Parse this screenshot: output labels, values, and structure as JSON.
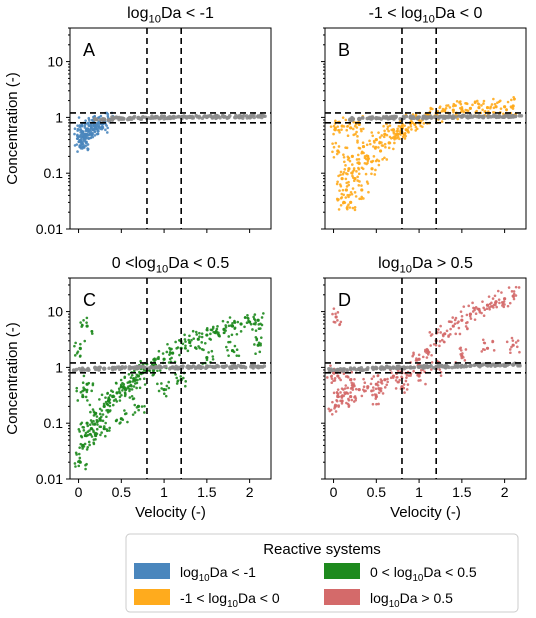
{
  "chart_data": [
    {
      "panel": "A",
      "type": "scatter",
      "title_base": "log",
      "title_sub": "10",
      "title_rest": "Da < -1",
      "xlabel": "",
      "ylabel": "Concentration (-)",
      "xlim": [
        -0.1,
        2.25
      ],
      "ylim": [
        0.01,
        40
      ],
      "yscale": "log",
      "xticks": [
        0,
        0.5,
        1,
        1.5,
        2
      ],
      "xtick_labels": [],
      "yticks": [
        0.01,
        0.1,
        1,
        10
      ],
      "ytick_labels": [
        "0.01",
        "0.1",
        "1",
        "10"
      ],
      "vlines": [
        0.8,
        1.2
      ],
      "hlines": [
        0.8,
        1.2
      ],
      "series": [
        {
          "color": "#4a86bd",
          "points": [
            [
              0.02,
              0.38
            ],
            [
              0.04,
              0.34
            ],
            [
              0.06,
              0.45
            ],
            [
              0.05,
              0.55
            ],
            [
              0.08,
              0.5
            ],
            [
              0.1,
              0.62
            ],
            [
              0.12,
              0.58
            ],
            [
              0.15,
              0.66
            ],
            [
              0.18,
              0.72
            ],
            [
              0.2,
              0.65
            ],
            [
              0.22,
              0.78
            ],
            [
              0.25,
              0.8
            ],
            [
              0.28,
              0.76
            ],
            [
              0.3,
              0.85
            ],
            [
              0.35,
              0.88
            ],
            [
              0.03,
              0.7
            ],
            [
              0.07,
              0.42
            ],
            [
              0.09,
              0.36
            ],
            [
              0.14,
              0.5
            ],
            [
              0.17,
              0.6
            ]
          ]
        },
        {
          "color": "#8c8c8c",
          "points": [
            [
              0.3,
              0.92
            ],
            [
              0.5,
              0.96
            ],
            [
              0.7,
              0.98
            ],
            [
              0.9,
              1.0
            ],
            [
              1.1,
              1.0
            ],
            [
              1.3,
              1.02
            ],
            [
              1.5,
              1.02
            ],
            [
              1.7,
              1.03
            ],
            [
              1.9,
              1.03
            ],
            [
              2.1,
              1.04
            ]
          ]
        }
      ]
    },
    {
      "panel": "B",
      "type": "scatter",
      "title_base": "-1 < log",
      "title_sub": "10",
      "title_rest": "Da < 0",
      "xlabel": "",
      "ylabel": "",
      "xlim": [
        -0.1,
        2.25
      ],
      "ylim": [
        0.01,
        40
      ],
      "yscale": "log",
      "xticks": [
        0,
        0.5,
        1,
        1.5,
        2
      ],
      "xtick_labels": [],
      "yticks": [
        0.01,
        0.1,
        1,
        10
      ],
      "ytick_labels": [],
      "vlines": [
        0.8,
        1.2
      ],
      "hlines": [
        0.8,
        1.2
      ],
      "series": [
        {
          "color": "#ffab1d",
          "points": [
            [
              0.02,
              0.6
            ],
            [
              0.05,
              0.25
            ],
            [
              0.1,
              0.08
            ],
            [
              0.12,
              0.03
            ],
            [
              0.15,
              0.05
            ],
            [
              0.18,
              0.12
            ],
            [
              0.2,
              0.03
            ],
            [
              0.22,
              0.2
            ],
            [
              0.25,
              0.08
            ],
            [
              0.3,
              0.15
            ],
            [
              0.33,
              0.05
            ],
            [
              0.35,
              0.3
            ],
            [
              0.4,
              0.2
            ],
            [
              0.45,
              0.12
            ],
            [
              0.5,
              0.4
            ],
            [
              0.55,
              0.25
            ],
            [
              0.6,
              0.5
            ],
            [
              0.65,
              0.35
            ],
            [
              0.7,
              0.6
            ],
            [
              0.75,
              0.5
            ],
            [
              0.8,
              0.7
            ],
            [
              0.85,
              0.6
            ],
            [
              0.9,
              0.8
            ],
            [
              0.95,
              0.75
            ],
            [
              1.0,
              0.9
            ],
            [
              1.1,
              1.1
            ],
            [
              1.2,
              1.2
            ],
            [
              1.3,
              1.3
            ],
            [
              1.4,
              1.35
            ],
            [
              1.5,
              1.4
            ],
            [
              1.6,
              1.45
            ],
            [
              1.7,
              1.5
            ],
            [
              1.8,
              1.5
            ],
            [
              1.9,
              1.55
            ],
            [
              2.0,
              1.55
            ],
            [
              2.1,
              1.6
            ],
            [
              0.1,
              0.7
            ],
            [
              0.2,
              0.65
            ],
            [
              0.3,
              0.75
            ]
          ]
        },
        {
          "color": "#8c8c8c",
          "points": [
            [
              0.3,
              0.94
            ],
            [
              0.5,
              0.97
            ],
            [
              0.7,
              0.99
            ],
            [
              0.9,
              1.0
            ],
            [
              1.1,
              1.0
            ],
            [
              1.3,
              1.02
            ],
            [
              1.5,
              1.03
            ],
            [
              1.7,
              1.04
            ],
            [
              1.9,
              1.04
            ],
            [
              2.1,
              1.05
            ]
          ]
        }
      ]
    },
    {
      "panel": "C",
      "type": "scatter",
      "title_base": "0 <log",
      "title_sub": "10",
      "title_rest": "Da < 0.5",
      "xlabel": "Velocity (-)",
      "ylabel": "Concentration (-)",
      "xlim": [
        -0.1,
        2.25
      ],
      "ylim": [
        0.01,
        40
      ],
      "yscale": "log",
      "xticks": [
        0,
        0.5,
        1,
        1.5,
        2
      ],
      "xtick_labels": [
        "0",
        "0.5",
        "1",
        "1.5",
        "2"
      ],
      "yticks": [
        0.01,
        0.1,
        1,
        10
      ],
      "ytick_labels": [
        "0.01",
        "0.1",
        "1",
        "10"
      ],
      "vlines": [
        0.8,
        1.2
      ],
      "hlines": [
        0.8,
        1.2
      ],
      "series": [
        {
          "color": "#1e8a1e",
          "points": [
            [
              0.02,
              0.02
            ],
            [
              0.05,
              0.04
            ],
            [
              0.08,
              0.06
            ],
            [
              0.1,
              0.1
            ],
            [
              0.15,
              0.08
            ],
            [
              0.2,
              0.15
            ],
            [
              0.25,
              0.12
            ],
            [
              0.3,
              0.2
            ],
            [
              0.35,
              0.25
            ],
            [
              0.4,
              0.3
            ],
            [
              0.45,
              0.35
            ],
            [
              0.5,
              0.45
            ],
            [
              0.55,
              0.4
            ],
            [
              0.6,
              0.55
            ],
            [
              0.65,
              0.6
            ],
            [
              0.7,
              0.7
            ],
            [
              0.75,
              0.8
            ],
            [
              0.8,
              0.9
            ],
            [
              0.85,
              1.0
            ],
            [
              0.9,
              1.1
            ],
            [
              1.0,
              1.4
            ],
            [
              1.1,
              1.8
            ],
            [
              1.2,
              2.2
            ],
            [
              1.3,
              2.8
            ],
            [
              1.4,
              3.2
            ],
            [
              1.5,
              3.8
            ],
            [
              1.6,
              4.2
            ],
            [
              1.7,
              4.8
            ],
            [
              1.8,
              5.5
            ],
            [
              1.9,
              6.0
            ],
            [
              2.0,
              6.5
            ],
            [
              2.1,
              7.0
            ],
            [
              0.05,
              0.3
            ],
            [
              0.1,
              0.5
            ],
            [
              0.2,
              0.06
            ],
            [
              0.3,
              0.08
            ],
            [
              0.5,
              0.12
            ],
            [
              0.7,
              0.2
            ],
            [
              1.0,
              0.4
            ],
            [
              1.2,
              0.6
            ],
            [
              1.5,
              1.5
            ],
            [
              1.8,
              2.0
            ],
            [
              2.1,
              2.5
            ],
            [
              0.1,
              5.5
            ],
            [
              0.02,
              2.2
            ]
          ]
        },
        {
          "color": "#8c8c8c",
          "points": [
            [
              0.05,
              0.92
            ],
            [
              0.3,
              0.95
            ],
            [
              0.5,
              0.97
            ],
            [
              0.7,
              0.99
            ],
            [
              0.9,
              1.0
            ],
            [
              1.1,
              1.0
            ],
            [
              1.3,
              1.01
            ],
            [
              1.5,
              1.02
            ],
            [
              1.7,
              1.02
            ],
            [
              1.9,
              1.03
            ],
            [
              2.1,
              1.03
            ]
          ]
        }
      ]
    },
    {
      "panel": "D",
      "type": "scatter",
      "title_base": "log",
      "title_sub": "10",
      "title_rest": "Da > 0.5",
      "xlabel": "Velocity (-)",
      "ylabel": "",
      "xlim": [
        -0.1,
        2.25
      ],
      "ylim": [
        0.01,
        40
      ],
      "yscale": "log",
      "xticks": [
        0,
        0.5,
        1,
        1.5,
        2
      ],
      "xtick_labels": [
        "0",
        "0.5",
        "1",
        "1.5",
        "2"
      ],
      "yticks": [
        0.01,
        0.1,
        1,
        10
      ],
      "ytick_labels": [],
      "vlines": [
        0.8,
        1.2
      ],
      "hlines": [
        0.8,
        1.2
      ],
      "series": [
        {
          "color": "#d46a6a",
          "points": [
            [
              0.02,
              0.2
            ],
            [
              0.05,
              0.3
            ],
            [
              0.1,
              0.25
            ],
            [
              0.15,
              0.35
            ],
            [
              0.2,
              0.3
            ],
            [
              0.3,
              0.4
            ],
            [
              0.4,
              0.45
            ],
            [
              0.5,
              0.5
            ],
            [
              0.6,
              0.6
            ],
            [
              0.7,
              0.7
            ],
            [
              0.8,
              0.8
            ],
            [
              0.9,
              1.0
            ],
            [
              1.0,
              1.4
            ],
            [
              1.1,
              2.0
            ],
            [
              1.2,
              3.0
            ],
            [
              1.3,
              4.0
            ],
            [
              1.4,
              5.5
            ],
            [
              1.5,
              7.0
            ],
            [
              1.6,
              9.0
            ],
            [
              1.7,
              11.0
            ],
            [
              1.8,
              13.0
            ],
            [
              1.9,
              15.0
            ],
            [
              2.0,
              17.0
            ],
            [
              2.1,
              19.0
            ],
            [
              0.05,
              0.7
            ],
            [
              0.2,
              0.6
            ],
            [
              0.5,
              0.3
            ],
            [
              0.8,
              0.45
            ],
            [
              1.0,
              0.7
            ],
            [
              1.2,
              1.0
            ],
            [
              1.5,
              1.6
            ],
            [
              1.8,
              2.2
            ],
            [
              2.1,
              2.5
            ],
            [
              0.0,
              0.8
            ],
            [
              0.03,
              8.0
            ]
          ]
        },
        {
          "color": "#8c8c8c",
          "points": [
            [
              0.05,
              0.9
            ],
            [
              0.3,
              0.94
            ],
            [
              0.5,
              0.97
            ],
            [
              0.7,
              0.99
            ],
            [
              0.9,
              1.0
            ],
            [
              1.1,
              1.02
            ],
            [
              1.3,
              1.04
            ],
            [
              1.5,
              1.06
            ],
            [
              1.7,
              1.08
            ],
            [
              1.9,
              1.1
            ],
            [
              2.1,
              1.12
            ]
          ]
        }
      ]
    }
  ],
  "legend": {
    "title": "Reactive systems",
    "entries": [
      {
        "base": "log",
        "sub": "10",
        "rest": "Da < -1",
        "color": "#4a86bd"
      },
      {
        "base": "-1 < log",
        "sub": "10",
        "rest": "Da < 0",
        "color": "#ffab1d"
      },
      {
        "base": "0 < log",
        "sub": "10",
        "rest": "Da < 0.5",
        "color": "#1e8a1e"
      },
      {
        "base": "log",
        "sub": "10",
        "rest": "Da > 0.5",
        "color": "#d46a6a"
      }
    ]
  }
}
